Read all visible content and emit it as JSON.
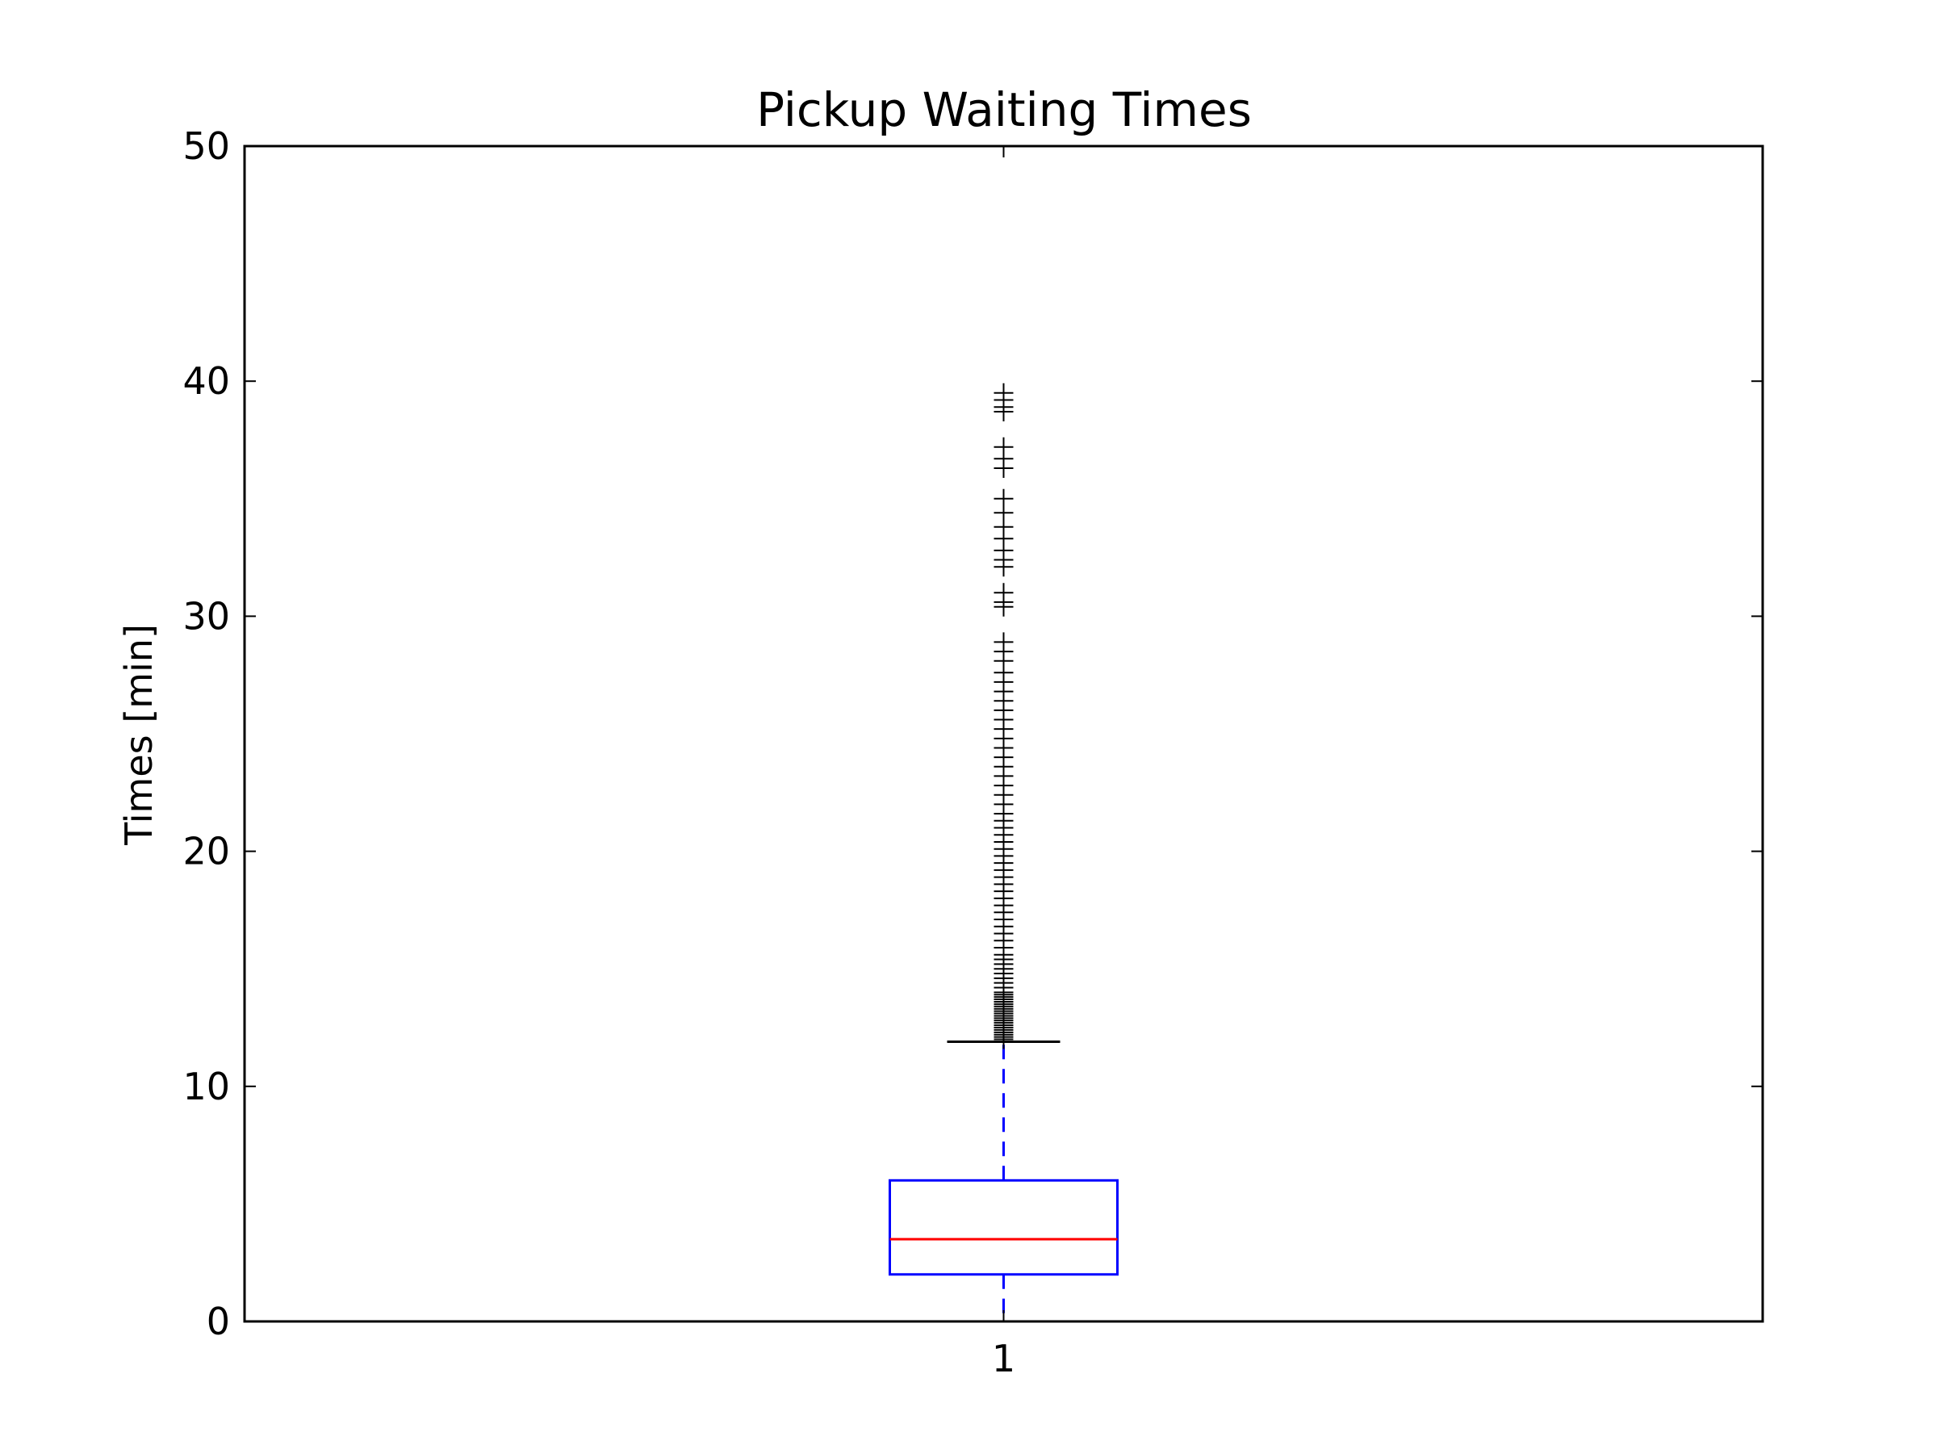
{
  "chart_data": {
    "type": "box",
    "title": "Pickup Waiting Times",
    "xlabel": "",
    "ylabel": "Times [min]",
    "categories": [
      "1"
    ],
    "ylim": [
      0,
      50
    ],
    "yticks": [
      "0",
      "10",
      "20",
      "30",
      "40",
      "50"
    ],
    "grid": false,
    "box": {
      "whisker_low": 0.0,
      "q1": 2.0,
      "median": 3.5,
      "q3": 6.0,
      "whisker_high": 11.9,
      "outliers": [
        12.0,
        12.1,
        12.2,
        12.3,
        12.4,
        12.5,
        12.6,
        12.7,
        12.8,
        12.9,
        13.0,
        13.1,
        13.2,
        13.3,
        13.4,
        13.5,
        13.6,
        13.7,
        13.8,
        13.9,
        14.0,
        14.2,
        14.4,
        14.6,
        14.8,
        15.0,
        15.2,
        15.4,
        15.6,
        15.9,
        16.2,
        16.5,
        16.8,
        17.1,
        17.4,
        17.7,
        18.0,
        18.3,
        18.6,
        18.9,
        19.2,
        19.5,
        19.8,
        20.1,
        20.4,
        20.7,
        21.0,
        21.3,
        21.6,
        22.0,
        22.4,
        22.8,
        23.2,
        23.6,
        24.0,
        24.4,
        24.8,
        25.2,
        25.6,
        26.0,
        26.4,
        26.8,
        27.2,
        27.6,
        28.1,
        28.5,
        28.9,
        30.4,
        30.6,
        31.0,
        32.1,
        32.4,
        32.8,
        33.3,
        33.8,
        34.4,
        35.0,
        36.3,
        36.7,
        37.2,
        38.7,
        38.9,
        39.2,
        39.5
      ]
    },
    "colors": {
      "box": "#0000ff",
      "median": "#ff0000",
      "whisker": "#0000ff",
      "cap": "#000000",
      "outlier": "#000000"
    }
  }
}
